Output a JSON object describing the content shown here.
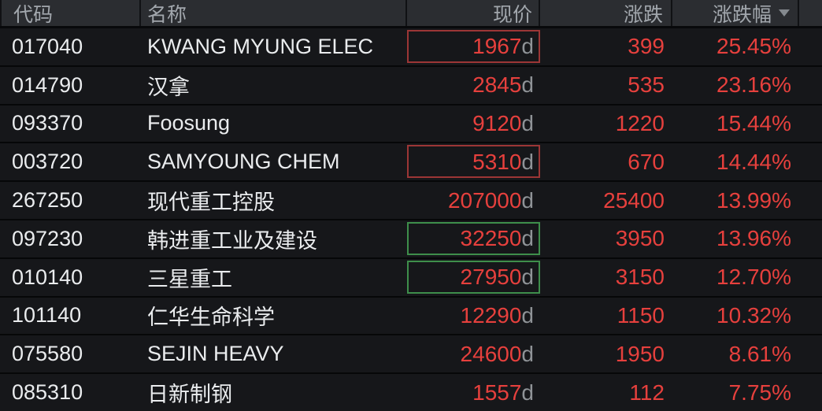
{
  "table": {
    "columns": [
      {
        "key": "code",
        "label": "代码"
      },
      {
        "key": "name",
        "label": "名称"
      },
      {
        "key": "price",
        "label": "现价"
      },
      {
        "key": "change",
        "label": "涨跌"
      },
      {
        "key": "pct",
        "label": "涨跌幅"
      }
    ],
    "sort": {
      "column": "涨跌幅",
      "direction": "desc"
    },
    "rows": [
      {
        "code": "017040",
        "name": "KWANG MYUNG ELEC",
        "price": "1967",
        "price_suffix": "d",
        "change": "399",
        "pct": "25.45%",
        "price_box": "red"
      },
      {
        "code": "014790",
        "name": "汉拿",
        "price": "2845",
        "price_suffix": "d",
        "change": "535",
        "pct": "23.16%",
        "price_box": null
      },
      {
        "code": "093370",
        "name": "Foosung",
        "price": "9120",
        "price_suffix": "d",
        "change": "1220",
        "pct": "15.44%",
        "price_box": null
      },
      {
        "code": "003720",
        "name": "SAMYOUNG CHEM",
        "price": "5310",
        "price_suffix": "d",
        "change": "670",
        "pct": "14.44%",
        "price_box": "red"
      },
      {
        "code": "267250",
        "name": "现代重工控股",
        "price": "207000",
        "price_suffix": "d",
        "change": "25400",
        "pct": "13.99%",
        "price_box": null
      },
      {
        "code": "097230",
        "name": "韩进重工业及建设",
        "price": "32250",
        "price_suffix": "d",
        "change": "3950",
        "pct": "13.96%",
        "price_box": "green"
      },
      {
        "code": "010140",
        "name": "三星重工",
        "price": "27950",
        "price_suffix": "d",
        "change": "3150",
        "pct": "12.70%",
        "price_box": "green"
      },
      {
        "code": "101140",
        "name": "仁华生命科学",
        "price": "12290",
        "price_suffix": "d",
        "change": "1150",
        "pct": "10.32%",
        "price_box": null
      },
      {
        "code": "075580",
        "name": "SEJIN HEAVY",
        "price": "24600",
        "price_suffix": "d",
        "change": "1950",
        "pct": "8.61%",
        "price_box": null
      },
      {
        "code": "085310",
        "name": "日新制钢",
        "price": "1557",
        "price_suffix": "d",
        "change": "112",
        "pct": "7.75%",
        "price_box": null
      }
    ]
  },
  "icons": {
    "sort": "triangle-down"
  },
  "colors": {
    "up_red": "#e6403d",
    "suffix_gray": "#8f9397",
    "red_box_border": "#9c3636",
    "green_box_border": "#3e8e4b",
    "header_bg": "#2b2d31",
    "row_bg": "#16171a"
  }
}
